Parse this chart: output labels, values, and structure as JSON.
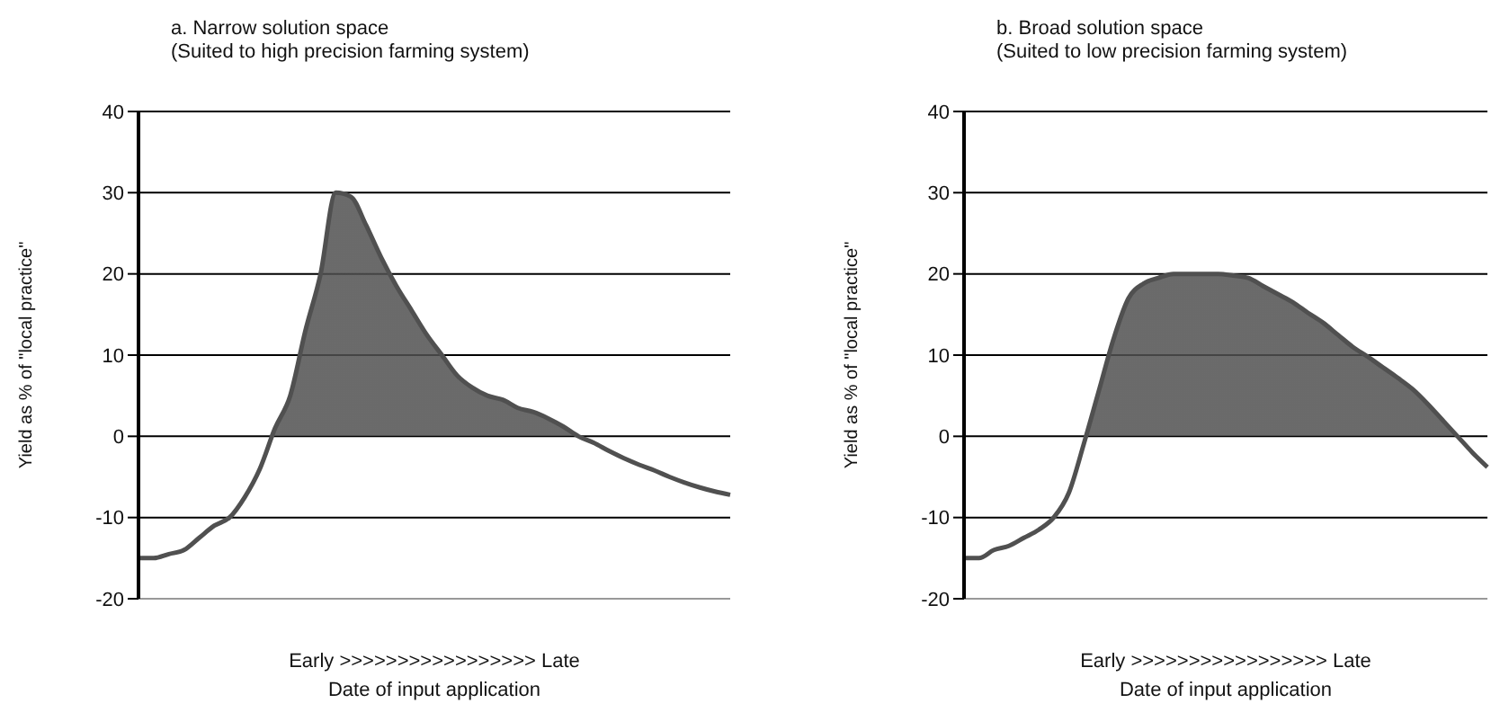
{
  "chart_data": [
    {
      "type": "area",
      "title": "a. Narrow solution space",
      "subtitle": "(Suited to high precision farming system)",
      "xlabel": "Date of input application",
      "ylabel": "Yield as % of \"local practice\"",
      "annotations": [
        "Early >>>>>>>>>>>>>>>>> Late"
      ],
      "categories": [
        null,
        null,
        null,
        null,
        null,
        null,
        null,
        null,
        null,
        null,
        null,
        null,
        null,
        null,
        null,
        null,
        null,
        null,
        null,
        null,
        null,
        null,
        null,
        null,
        null,
        null,
        null,
        null,
        null,
        null,
        null,
        null,
        null,
        null,
        null,
        null,
        null,
        null,
        null,
        null
      ],
      "series": [
        {
          "color": "#505050",
          "values": [
            -15,
            -15,
            -14.5,
            -14,
            -12.5,
            -11,
            -10,
            -7.5,
            -4,
            1,
            5,
            13,
            20,
            30,
            29.5,
            26,
            22,
            18.5,
            15.5,
            12.5,
            10,
            7.5,
            6,
            5,
            4.5,
            3.5,
            3,
            2.2,
            1.2,
            0,
            -0.8,
            -1.8,
            -2.7,
            -3.5,
            -4.2,
            -5,
            -5.7,
            -6.3,
            -6.8,
            -7.2
          ]
        }
      ],
      "ylim": [
        -20,
        40
      ],
      "yticks": [
        -20,
        -10,
        0,
        10,
        20,
        30,
        40
      ],
      "grid": "y"
    },
    {
      "type": "area",
      "title": "b. Broad solution space",
      "subtitle": "(Suited to low precision farming system)",
      "xlabel": "Date of input application",
      "ylabel": "Yield as % of \"local practice\"",
      "annotations": [
        "Early >>>>>>>>>>>>>>>>> Late"
      ],
      "categories": [
        null,
        null,
        null,
        null,
        null,
        null,
        null,
        null,
        null,
        null,
        null,
        null,
        null,
        null,
        null,
        null,
        null,
        null,
        null,
        null,
        null,
        null,
        null,
        null,
        null,
        null,
        null,
        null,
        null,
        null,
        null,
        null,
        null,
        null,
        null,
        null
      ],
      "series": [
        {
          "color": "#505050",
          "values": [
            -15,
            -15,
            -14,
            -13.5,
            -12.5,
            -11.5,
            -10,
            -7,
            -1,
            5.5,
            12,
            17,
            18.8,
            19.5,
            20,
            20,
            20,
            20,
            19.8,
            19.5,
            18.5,
            17.5,
            16.5,
            15.2,
            14,
            12.5,
            11,
            9.8,
            8.5,
            7.2,
            5.8,
            4,
            2,
            0,
            -2,
            -3.8
          ]
        }
      ],
      "ylim": [
        -20,
        40
      ],
      "yticks": [
        -20,
        -10,
        0,
        10,
        20,
        30,
        40
      ],
      "grid": "y"
    }
  ]
}
